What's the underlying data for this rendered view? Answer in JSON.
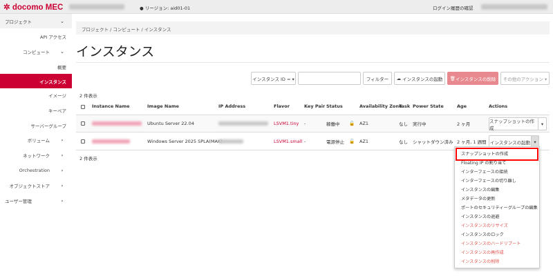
{
  "header": {
    "brand": "docomo MEC",
    "region_label": "リージョン: aid01-01",
    "login_history": "ログイン履歴の確認"
  },
  "sidebar": {
    "project": "プロジェクト",
    "api_access": "API アクセス",
    "compute": "コンピュート",
    "overview": "概要",
    "instances": "インスタンス",
    "images": "イメージ",
    "keypairs": "キーペア",
    "server_groups": "サーバーグループ",
    "volumes": "ボリューム",
    "network": "ネットワーク",
    "orchestration": "Orchestration",
    "object_store": "オブジェクトストア",
    "user_mgmt": "ユーザー管理"
  },
  "breadcrumb": {
    "project": "プロジェクト",
    "compute": "コンピュート",
    "instances": "インスタンス",
    "sep": "/"
  },
  "page_title": "インスタンス",
  "toolbar": {
    "filter_field": "インスタンス ID = ▾",
    "filter_value": "",
    "filter": "フィルター",
    "launch": "インスタンスの起動",
    "delete": "インスタンスの削除",
    "more": "その他のアクション ▾"
  },
  "count_text": "2 件表示",
  "table": {
    "headers": [
      "Instance Name",
      "Image Name",
      "IP Address",
      "Flavor",
      "Key Pair",
      "Status",
      "Availability Zone",
      "Task",
      "Power State",
      "Age",
      "Actions"
    ],
    "rows": [
      {
        "image": "Ubuntu Server 22.04",
        "flavor": "LSVM1.tiny",
        "keypair": "-",
        "status": "稼働中",
        "az": "AZ1",
        "task": "なし",
        "power": "実行中",
        "age": "2 ヶ月",
        "action": "スナップショットの作成"
      },
      {
        "image": "Windows Server 2025 SPLA(MAK)",
        "flavor": "LSVM1.small",
        "keypair": "-",
        "status": "電源停止",
        "az": "AZ1",
        "task": "なし",
        "power": "シャットダウン済み",
        "age": "2 ヶ月, 1 週間",
        "action": "インスタンスの起動"
      }
    ]
  },
  "menu": {
    "items": [
      {
        "label": "スナップショットの作成",
        "danger": false,
        "highlighted": true
      },
      {
        "label": "Floating IP の割り当て",
        "danger": false
      },
      {
        "label": "インターフェースの接続",
        "danger": false
      },
      {
        "label": "インターフェースの切り離し",
        "danger": false
      },
      {
        "label": "インスタンスの編集",
        "danger": false
      },
      {
        "label": "メタデータの更新",
        "danger": false
      },
      {
        "label": "ポートのセキュリティーグループの編集",
        "danger": false
      },
      {
        "label": "インスタンスの退避",
        "danger": false
      },
      {
        "label": "インスタンスのリサイズ",
        "danger": true
      },
      {
        "label": "インスタンスのロック",
        "danger": false
      },
      {
        "label": "インスタンスのハードリブート",
        "danger": true
      },
      {
        "label": "インスタンスの再作成",
        "danger": true
      },
      {
        "label": "インスタンスの削除",
        "danger": true
      }
    ]
  },
  "colors": {
    "brand": "#cc0033",
    "danger_button": "#e8898f",
    "highlight_border": "#ff0000"
  }
}
